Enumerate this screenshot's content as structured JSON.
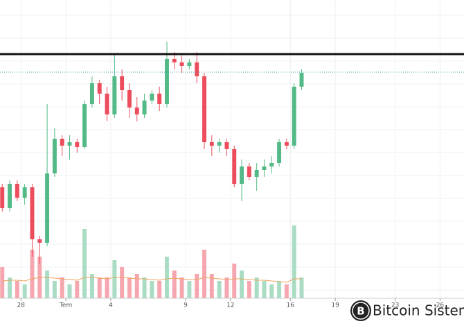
{
  "chart_data": {
    "type": "candlestick",
    "watermark": "Bitcoin Sistemi",
    "xlim": [
      -1.4,
      29.6
    ],
    "xticks": [
      {
        "value": 0,
        "label": "28"
      },
      {
        "value": 3,
        "label": "Tem"
      },
      {
        "value": 6,
        "label": "4"
      },
      {
        "value": 11,
        "label": "9"
      },
      {
        "value": 14,
        "label": "12"
      },
      {
        "value": 18,
        "label": "16"
      },
      {
        "value": 21,
        "label": "19"
      },
      {
        "value": 25,
        "label": "23"
      },
      {
        "value": 28,
        "label": "26"
      }
    ],
    "ylim": [
      0,
      440
    ],
    "y2lim": [
      0,
      430
    ],
    "up_color": "#53b987",
    "down_color": "#eb4d5c",
    "up_volume_color": "#a9dcc3",
    "down_volume_color": "#f5a6ae",
    "volume_ma_color": "#f0a35e",
    "reference_lines": [
      {
        "value": 362,
        "color": "#111111",
        "width": 3,
        "dash": "none"
      },
      {
        "value": 336,
        "color": "#3aa5a0",
        "width": 1,
        "dash": "1,2"
      }
    ],
    "x": [
      -1.25,
      -0.75,
      -0.25,
      0.25,
      0.75,
      1.25,
      1.75,
      2.25,
      2.75,
      3.25,
      3.75,
      4.25,
      4.75,
      5.25,
      5.75,
      6.25,
      6.75,
      7.25,
      7.75,
      8.25,
      8.75,
      9.25,
      9.75,
      10.25,
      10.75,
      11.25,
      11.75,
      12.25,
      12.75,
      13.25,
      13.75,
      14.25,
      14.75,
      15.25,
      15.75,
      16.25,
      16.75,
      17.25,
      17.75,
      18.25,
      18.75
    ],
    "open": [
      170,
      140,
      175,
      155,
      170,
      95,
      90,
      190,
      240,
      230,
      235,
      228,
      290,
      320,
      305,
      275,
      330,
      310,
      285,
      275,
      295,
      305,
      290,
      355,
      350,
      345,
      350,
      330,
      235,
      230,
      235,
      225,
      175,
      200,
      185,
      195,
      200,
      205,
      235,
      230,
      315
    ],
    "high": [
      175,
      180,
      180,
      175,
      175,
      100,
      290,
      255,
      245,
      245,
      240,
      295,
      330,
      325,
      315,
      362,
      340,
      320,
      300,
      305,
      310,
      315,
      380,
      365,
      360,
      355,
      365,
      335,
      245,
      240,
      240,
      230,
      210,
      205,
      205,
      210,
      215,
      240,
      240,
      320,
      340
    ],
    "low": [
      135,
      135,
      150,
      145,
      70,
      60,
      85,
      185,
      215,
      210,
      220,
      225,
      285,
      290,
      265,
      270,
      295,
      270,
      265,
      270,
      290,
      280,
      285,
      340,
      335,
      340,
      320,
      225,
      215,
      220,
      215,
      170,
      150,
      180,
      165,
      185,
      190,
      200,
      225,
      225,
      310
    ],
    "close": [
      140,
      175,
      155,
      170,
      95,
      90,
      190,
      240,
      230,
      235,
      228,
      290,
      320,
      305,
      275,
      330,
      310,
      285,
      275,
      295,
      305,
      290,
      355,
      350,
      345,
      350,
      330,
      235,
      230,
      235,
      225,
      175,
      200,
      185,
      195,
      200,
      205,
      235,
      230,
      315,
      335
    ],
    "volume": [
      45,
      30,
      25,
      20,
      70,
      60,
      40,
      25,
      30,
      20,
      25,
      100,
      35,
      30,
      30,
      55,
      45,
      30,
      35,
      30,
      25,
      25,
      60,
      40,
      30,
      25,
      35,
      70,
      35,
      25,
      30,
      50,
      40,
      25,
      30,
      25,
      20,
      25,
      20,
      105,
      30
    ],
    "volume_ma": [
      25,
      26,
      26,
      25,
      28,
      30,
      30,
      29,
      28,
      27,
      26,
      30,
      30,
      29,
      28,
      30,
      30,
      29,
      28,
      28,
      27,
      26,
      28,
      29,
      28,
      27,
      27,
      30,
      29,
      28,
      27,
      28,
      28,
      27,
      26,
      26,
      25,
      24,
      23,
      28,
      28
    ]
  }
}
